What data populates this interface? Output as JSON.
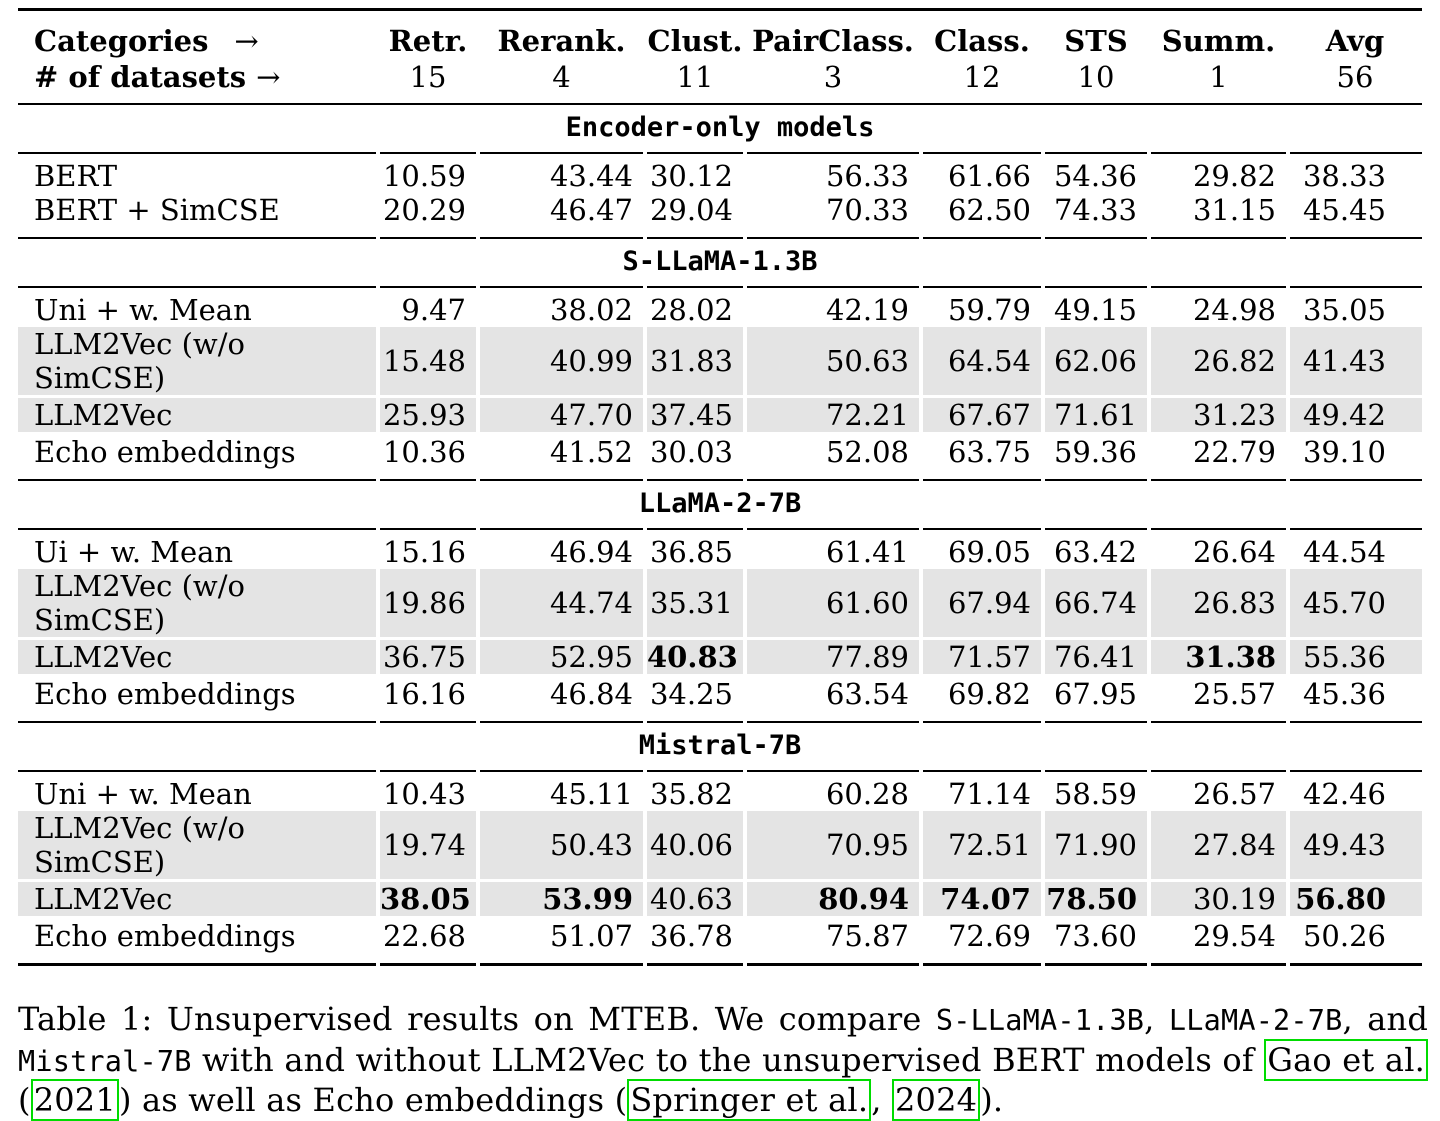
{
  "table": {
    "header": {
      "row1_label": "Categories",
      "row1_arrow": "→",
      "row2_label": "# of datasets",
      "row2_arrow": "→",
      "columns": [
        "Retr.",
        "Rerank.",
        "Clust.",
        "PairClass.",
        "Class.",
        "STS",
        "Summ.",
        "Avg"
      ],
      "dataset_counts": [
        "15",
        "4",
        "11",
        "3",
        "12",
        "10",
        "1",
        "56"
      ]
    },
    "sections": [
      {
        "title": "Encoder-only models",
        "rows": [
          {
            "label": "BERT",
            "shaded": false,
            "values": [
              "10.59",
              "43.44",
              "30.12",
              "56.33",
              "61.66",
              "54.36",
              "29.82",
              "38.33"
            ],
            "bold": [
              false,
              false,
              false,
              false,
              false,
              false,
              false,
              false
            ]
          },
          {
            "label": "BERT + SimCSE",
            "shaded": false,
            "values": [
              "20.29",
              "46.47",
              "29.04",
              "70.33",
              "62.50",
              "74.33",
              "31.15",
              "45.45"
            ],
            "bold": [
              false,
              false,
              false,
              false,
              false,
              false,
              false,
              false
            ]
          }
        ]
      },
      {
        "title": "S-LLaMA-1.3B",
        "rows": [
          {
            "label": "Uni + w. Mean",
            "shaded": false,
            "values": [
              "9.47",
              "38.02",
              "28.02",
              "42.19",
              "59.79",
              "49.15",
              "24.98",
              "35.05"
            ],
            "bold": [
              false,
              false,
              false,
              false,
              false,
              false,
              false,
              false
            ]
          },
          {
            "label": "LLM2Vec (w/o SimCSE)",
            "shaded": true,
            "values": [
              "15.48",
              "40.99",
              "31.83",
              "50.63",
              "64.54",
              "62.06",
              "26.82",
              "41.43"
            ],
            "bold": [
              false,
              false,
              false,
              false,
              false,
              false,
              false,
              false
            ]
          },
          {
            "label": "LLM2Vec",
            "shaded": true,
            "values": [
              "25.93",
              "47.70",
              "37.45",
              "72.21",
              "67.67",
              "71.61",
              "31.23",
              "49.42"
            ],
            "bold": [
              false,
              false,
              false,
              false,
              false,
              false,
              false,
              false
            ]
          },
          {
            "label": "Echo embeddings",
            "shaded": false,
            "values": [
              "10.36",
              "41.52",
              "30.03",
              "52.08",
              "63.75",
              "59.36",
              "22.79",
              "39.10"
            ],
            "bold": [
              false,
              false,
              false,
              false,
              false,
              false,
              false,
              false
            ]
          }
        ]
      },
      {
        "title": "LLaMA-2-7B",
        "rows": [
          {
            "label": "Ui + w. Mean",
            "shaded": false,
            "values": [
              "15.16",
              "46.94",
              "36.85",
              "61.41",
              "69.05",
              "63.42",
              "26.64",
              "44.54"
            ],
            "bold": [
              false,
              false,
              false,
              false,
              false,
              false,
              false,
              false
            ]
          },
          {
            "label": "LLM2Vec (w/o SimCSE)",
            "shaded": true,
            "values": [
              "19.86",
              "44.74",
              "35.31",
              "61.60",
              "67.94",
              "66.74",
              "26.83",
              "45.70"
            ],
            "bold": [
              false,
              false,
              false,
              false,
              false,
              false,
              false,
              false
            ]
          },
          {
            "label": "LLM2Vec",
            "shaded": true,
            "values": [
              "36.75",
              "52.95",
              "40.83",
              "77.89",
              "71.57",
              "76.41",
              "31.38",
              "55.36"
            ],
            "bold": [
              false,
              false,
              true,
              false,
              false,
              false,
              true,
              false
            ]
          },
          {
            "label": "Echo embeddings",
            "shaded": false,
            "values": [
              "16.16",
              "46.84",
              "34.25",
              "63.54",
              "69.82",
              "67.95",
              "25.57",
              "45.36"
            ],
            "bold": [
              false,
              false,
              false,
              false,
              false,
              false,
              false,
              false
            ]
          }
        ]
      },
      {
        "title": "Mistral-7B",
        "rows": [
          {
            "label": "Uni + w. Mean",
            "shaded": false,
            "values": [
              "10.43",
              "45.11",
              "35.82",
              "60.28",
              "71.14",
              "58.59",
              "26.57",
              "42.46"
            ],
            "bold": [
              false,
              false,
              false,
              false,
              false,
              false,
              false,
              false
            ]
          },
          {
            "label": "LLM2Vec (w/o SimCSE)",
            "shaded": true,
            "values": [
              "19.74",
              "50.43",
              "40.06",
              "70.95",
              "72.51",
              "71.90",
              "27.84",
              "49.43"
            ],
            "bold": [
              false,
              false,
              false,
              false,
              false,
              false,
              false,
              false
            ]
          },
          {
            "label": "LLM2Vec",
            "shaded": true,
            "values": [
              "38.05",
              "53.99",
              "40.63",
              "80.94",
              "74.07",
              "78.50",
              "30.19",
              "56.80"
            ],
            "bold": [
              true,
              true,
              false,
              true,
              true,
              true,
              false,
              true
            ]
          },
          {
            "label": "Echo embeddings",
            "shaded": false,
            "values": [
              "22.68",
              "51.07",
              "36.78",
              "75.87",
              "72.69",
              "73.60",
              "29.54",
              "50.26"
            ],
            "bold": [
              false,
              false,
              false,
              false,
              false,
              false,
              false,
              false
            ]
          }
        ]
      }
    ]
  },
  "caption": {
    "segments": [
      {
        "t": "Table 1:  Unsupervised results on MTEB. We compare ",
        "style": "serif"
      },
      {
        "t": "S-LLaMA-1.3B",
        "style": "mono"
      },
      {
        "t": ", ",
        "style": "serif"
      },
      {
        "t": "LLaMA-2-7B",
        "style": "mono"
      },
      {
        "t": ", and ",
        "style": "serif"
      },
      {
        "t": "Mistral-7B",
        "style": "mono"
      },
      {
        "t": " with and without LLM2Vec to the unsupervised BERT models of ",
        "style": "serif"
      },
      {
        "t": "Gao et al.",
        "style": "boxed"
      },
      {
        "t": " (",
        "style": "serif"
      },
      {
        "t": "2021",
        "style": "boxed"
      },
      {
        "t": ") as well as Echo embeddings (",
        "style": "serif"
      },
      {
        "t": "Springer et al.",
        "style": "boxed"
      },
      {
        "t": ", ",
        "style": "serif"
      },
      {
        "t": "2024",
        "style": "boxed"
      },
      {
        "t": ").",
        "style": "serif"
      }
    ]
  },
  "colors": {
    "row_highlight": "#e4e4e4",
    "citation_box": "#00dc00"
  }
}
